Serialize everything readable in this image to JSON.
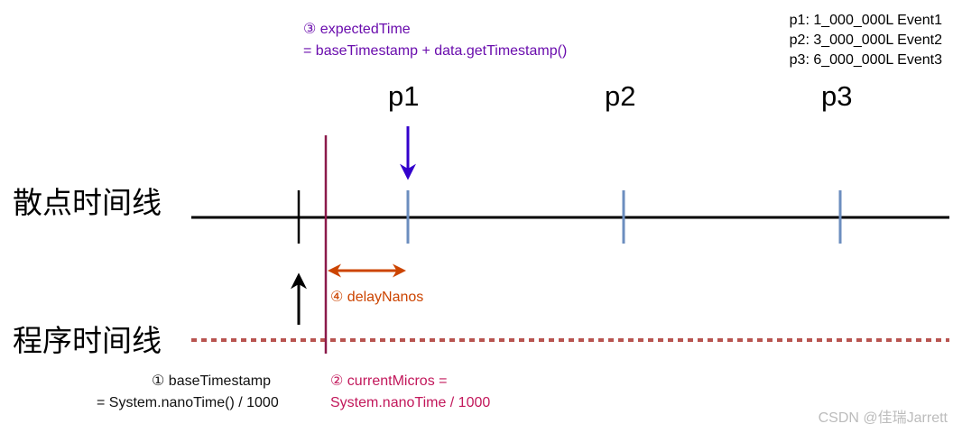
{
  "colors": {
    "axis": "#000000",
    "program_line": "#b85450",
    "event_tick": "#6c8ebf",
    "current_line": "#8b1a4a",
    "blue_arrow": "#3300cc",
    "delay_arrow": "#cc4400",
    "annotation_purple": "#6a0dad",
    "annotation_magenta": "#c2185b",
    "annotation_orange": "#cc4400"
  },
  "lanes": {
    "event_timeline": "散点时间线",
    "program_timeline": "程序时间线"
  },
  "points": [
    {
      "label": "p1"
    },
    {
      "label": "p2"
    },
    {
      "label": "p3"
    }
  ],
  "legend": [
    "p1:  1_000_000L Event1",
    "p2:  3_000_000L Event2",
    "p3:  6_000_000L Event3"
  ],
  "annotations": {
    "expected": {
      "line1": "③ expectedTime",
      "line2": "= baseTimestamp + data.getTimestamp()"
    },
    "base": {
      "line1": "① baseTimestamp",
      "line2": "= System.nanoTime()  / 1000"
    },
    "current": {
      "line1": "② currentMicros =",
      "line2": "System.nanoTime / 1000"
    },
    "delay": "④ delayNanos"
  },
  "watermark": "CSDN @佳瑞Jarrett"
}
